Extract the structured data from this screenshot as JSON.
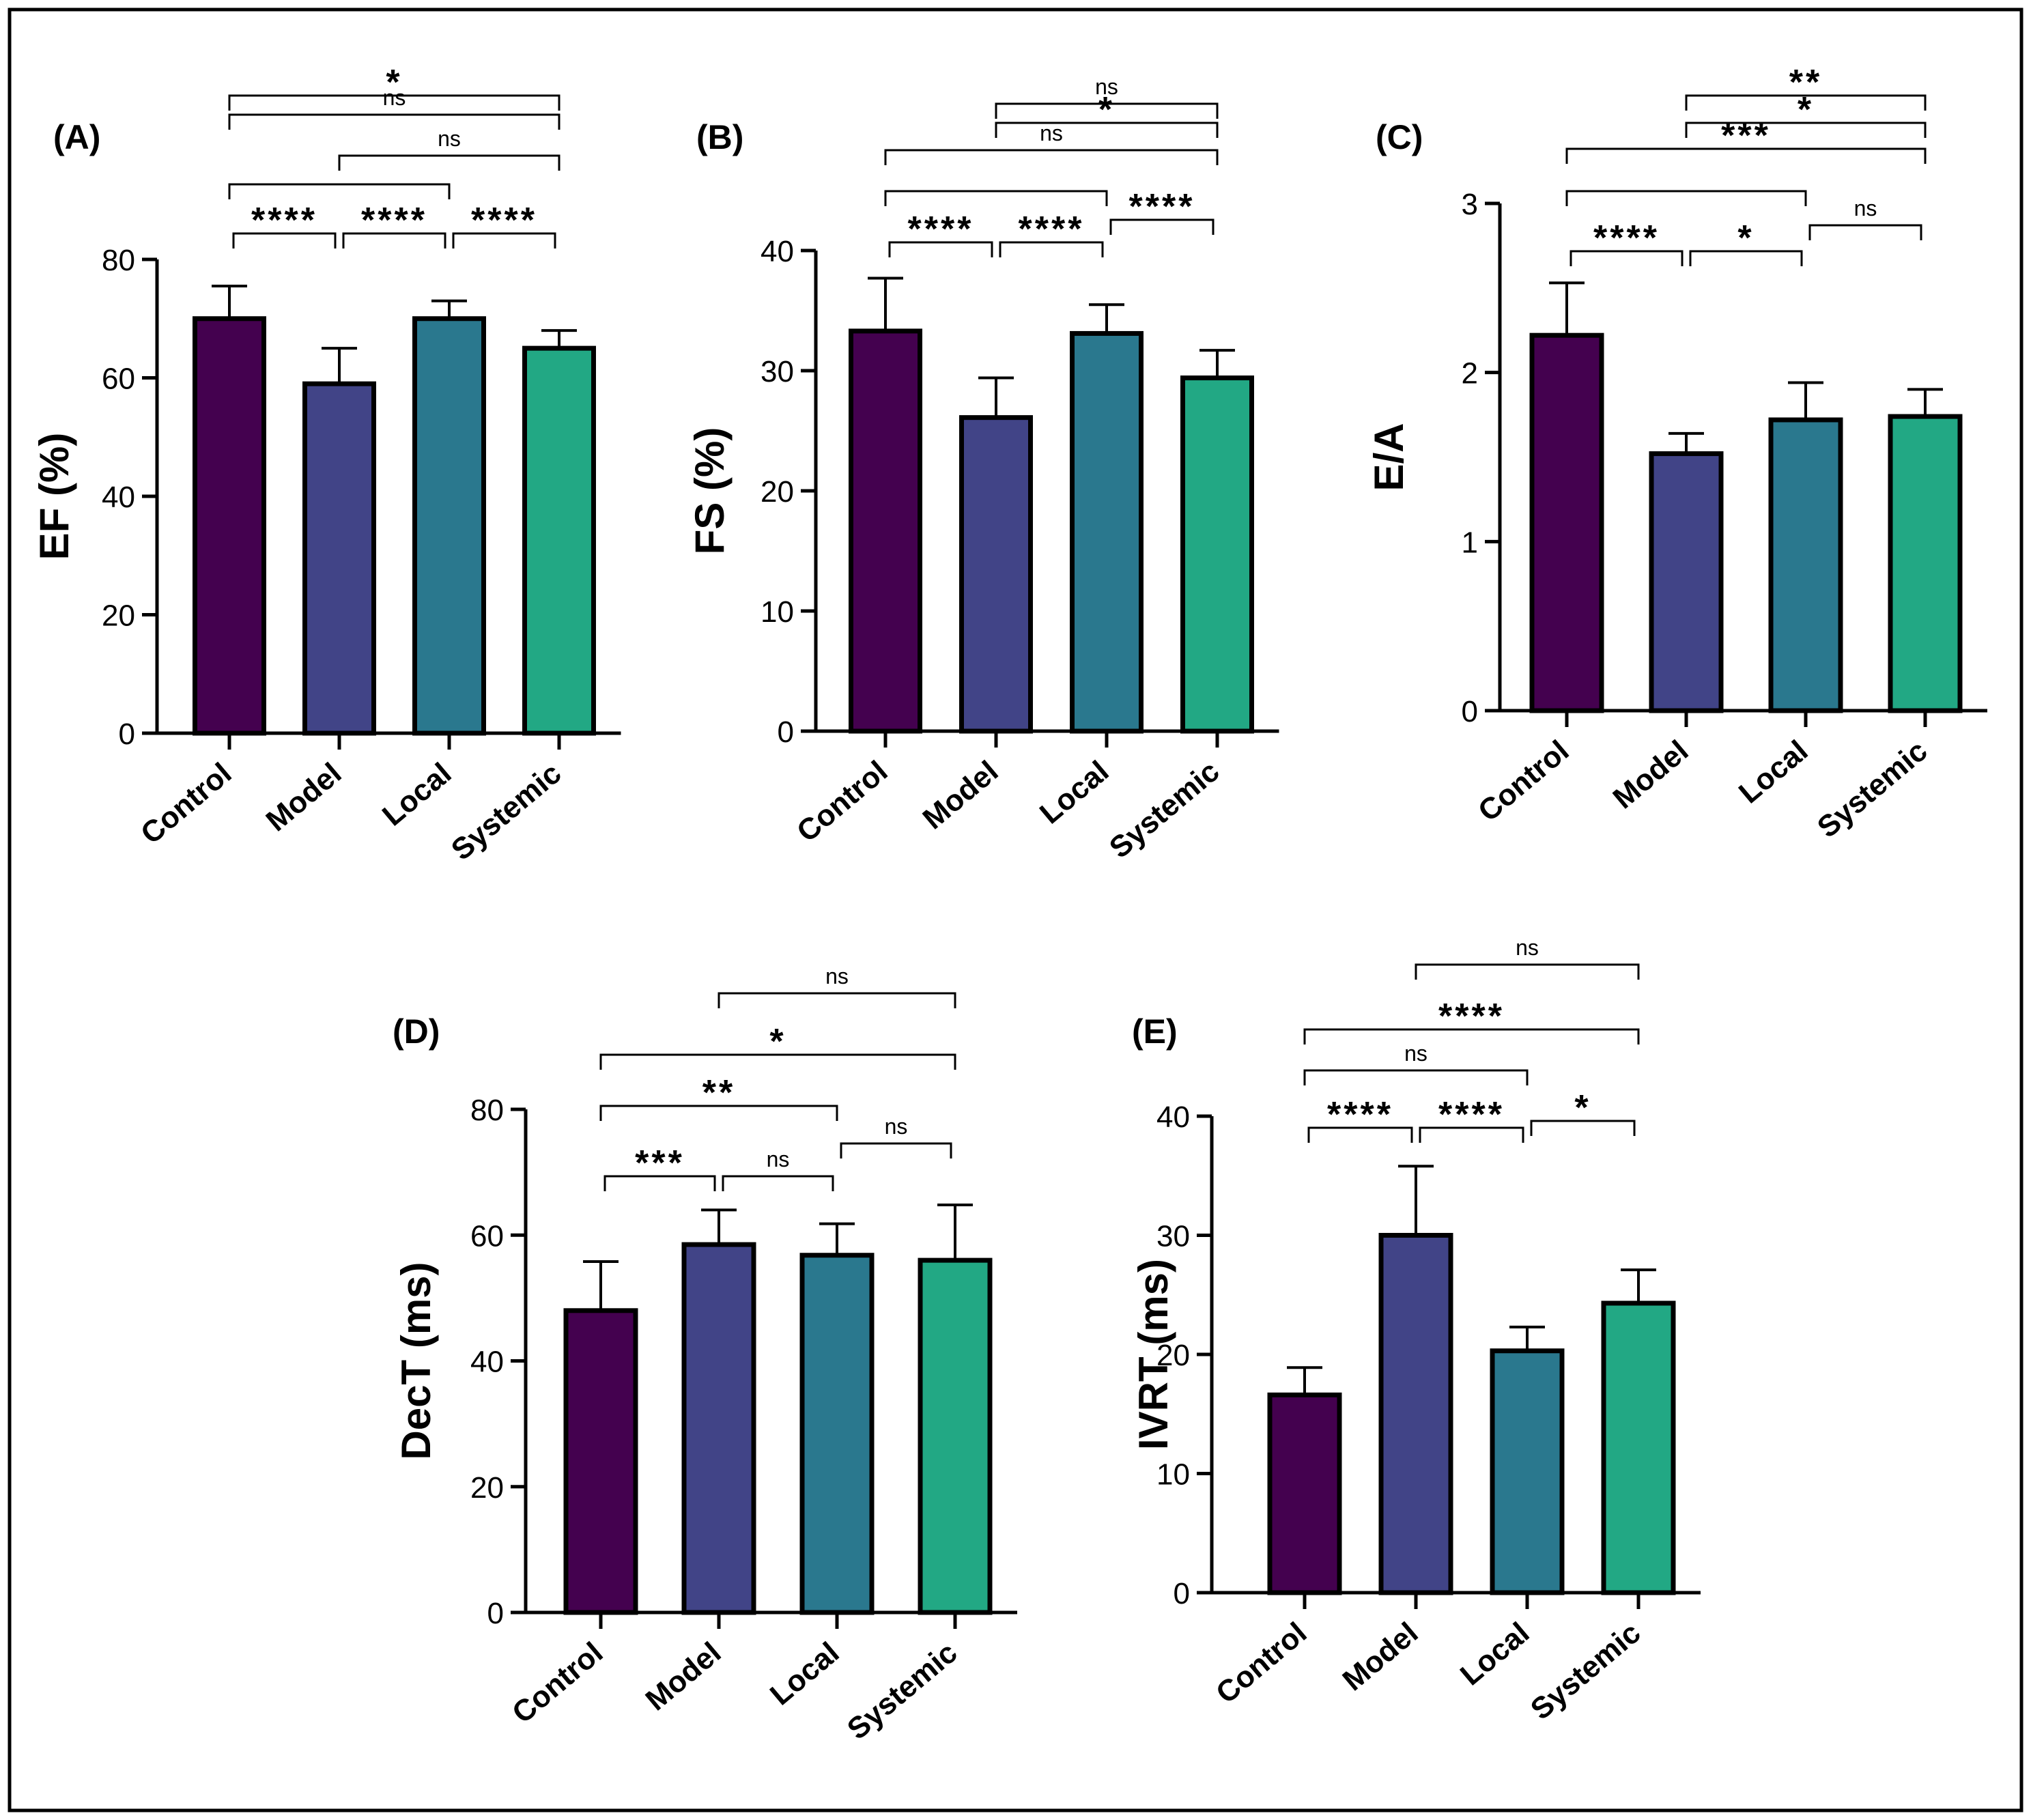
{
  "figure": {
    "group_colors": [
      "#44014f",
      "#414487",
      "#2a788e",
      "#22a884"
    ],
    "bar_outline_color": "#000000",
    "panel_border_color": "#000000"
  },
  "chart_data": [
    {
      "panel": "(A)",
      "type": "bar",
      "categories": [
        "Control",
        "Model",
        "Local",
        "Systemic"
      ],
      "values": [
        70,
        59,
        70,
        65
      ],
      "errors_upper": [
        75.5,
        65,
        73,
        68
      ],
      "ylabel": "EF (%)",
      "ylim": [
        0,
        80
      ],
      "yticks": [
        0,
        20,
        40,
        60,
        80
      ],
      "tick_labels": [
        "0",
        "20",
        "40",
        "60",
        "80"
      ],
      "significance": [
        {
          "from": "Control",
          "to": "Model",
          "label": "****"
        },
        {
          "from": "Model",
          "to": "Local",
          "label": "****"
        },
        {
          "from": "Local",
          "to": "Systemic",
          "label": "****"
        },
        {
          "from": "Control",
          "to": "Local",
          "label": ""
        },
        {
          "from": "Model",
          "to": "Systemic",
          "label": "ns"
        },
        {
          "from": "Control",
          "to": "Systemic",
          "label": "ns"
        },
        {
          "from": "Control",
          "to": "Systemic",
          "label": "*"
        }
      ]
    },
    {
      "panel": "(B)",
      "type": "bar",
      "categories": [
        "Control",
        "Model",
        "Local",
        "Systemic"
      ],
      "values": [
        33.3,
        26.1,
        33.1,
        29.4
      ],
      "errors_upper": [
        37.7,
        29.4,
        35.5,
        31.7
      ],
      "ylabel": "FS (%)",
      "ylim": [
        0,
        40
      ],
      "yticks": [
        0,
        10,
        20,
        30,
        40
      ],
      "tick_labels": [
        "0",
        "10",
        "20",
        "30",
        "40"
      ],
      "significance": [
        {
          "from": "Control",
          "to": "Model",
          "label": "****"
        },
        {
          "from": "Model",
          "to": "Local",
          "label": "****"
        },
        {
          "from": "Local",
          "to": "Systemic",
          "label": "****"
        },
        {
          "from": "Control",
          "to": "Local",
          "label": ""
        },
        {
          "from": "Control",
          "to": "Systemic",
          "label": "ns"
        },
        {
          "from": "Model",
          "to": "Systemic",
          "label": "*"
        },
        {
          "from": "Model",
          "to": "Systemic",
          "label": "ns"
        }
      ]
    },
    {
      "panel": "(C)",
      "type": "bar",
      "categories": [
        "Control",
        "Model",
        "Local",
        "Systemic"
      ],
      "values": [
        2.22,
        1.52,
        1.72,
        1.74
      ],
      "errors_upper": [
        2.53,
        1.64,
        1.94,
        1.9
      ],
      "ylabel": "E/A",
      "ylim": [
        0,
        3
      ],
      "yticks": [
        0,
        1,
        2,
        3
      ],
      "tick_labels": [
        "0",
        "1",
        "2",
        "3"
      ],
      "significance": [
        {
          "from": "Control",
          "to": "Model",
          "label": "****"
        },
        {
          "from": "Model",
          "to": "Local",
          "label": "*"
        },
        {
          "from": "Local",
          "to": "Systemic",
          "label": "ns"
        },
        {
          "from": "Control",
          "to": "Local",
          "label": ""
        },
        {
          "from": "Control",
          "to": "Systemic",
          "label": "***"
        },
        {
          "from": "Model",
          "to": "Systemic",
          "label": "*"
        },
        {
          "from": "Model",
          "to": "Systemic",
          "label": "**"
        }
      ]
    },
    {
      "panel": "(D)",
      "type": "bar",
      "categories": [
        "Control",
        "Model",
        "Local",
        "Systemic"
      ],
      "values": [
        48,
        58.5,
        56.8,
        56
      ],
      "errors_upper": [
        55.8,
        64,
        61.8,
        64.8
      ],
      "ylabel": "DecT (ms)",
      "ylim": [
        0,
        80
      ],
      "yticks": [
        0,
        20,
        40,
        60,
        80
      ],
      "tick_labels": [
        "0",
        "20",
        "40",
        "60",
        "80"
      ],
      "significance": [
        {
          "from": "Control",
          "to": "Model",
          "label": "***"
        },
        {
          "from": "Model",
          "to": "Local",
          "label": "ns"
        },
        {
          "from": "Local",
          "to": "Systemic",
          "label": "ns"
        },
        {
          "from": "Control",
          "to": "Local",
          "label": "**"
        },
        {
          "from": "Control",
          "to": "Systemic",
          "label": "*"
        },
        {
          "from": "Model",
          "to": "Systemic",
          "label": "ns"
        }
      ]
    },
    {
      "panel": "(E)",
      "type": "bar",
      "categories": [
        "Control",
        "Model",
        "Local",
        "Systemic"
      ],
      "values": [
        16.6,
        30,
        20.3,
        24.3
      ],
      "errors_upper": [
        18.9,
        35.8,
        22.3,
        27.1
      ],
      "ylabel": "IVRT (ms)",
      "ylim": [
        0,
        40
      ],
      "yticks": [
        0,
        10,
        20,
        30,
        40
      ],
      "tick_labels": [
        "0",
        "10",
        "20",
        "30",
        "40"
      ],
      "significance": [
        {
          "from": "Control",
          "to": "Model",
          "label": "****"
        },
        {
          "from": "Model",
          "to": "Local",
          "label": "****"
        },
        {
          "from": "Local",
          "to": "Systemic",
          "label": "*"
        },
        {
          "from": "Control",
          "to": "Local",
          "label": "ns"
        },
        {
          "from": "Control",
          "to": "Systemic",
          "label": "****"
        },
        {
          "from": "Model",
          "to": "Systemic",
          "label": "ns"
        }
      ]
    }
  ]
}
